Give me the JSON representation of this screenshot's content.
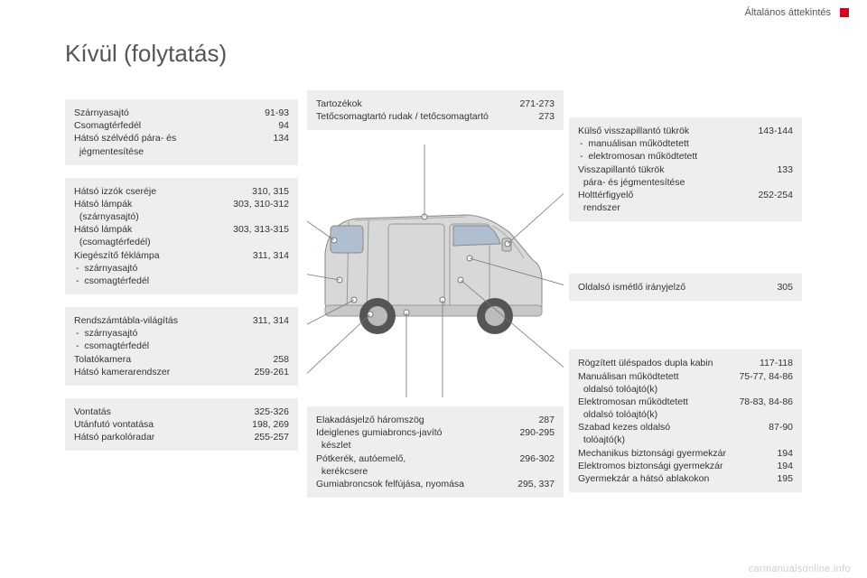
{
  "header": {
    "section": "Általános áttekintés"
  },
  "title": "Kívül (folytatás)",
  "left": [
    {
      "rows": [
        {
          "label": "Szárnyasajtó",
          "pages": "91-93"
        },
        {
          "label": "Csomagtérfedél",
          "pages": "94"
        },
        {
          "label": "Hátsó szélvédő pára- és\n  jégmentesítése",
          "pages": "134"
        }
      ]
    },
    {
      "rows": [
        {
          "label": "Hátsó izzók cseréje",
          "pages": "310, 315"
        },
        {
          "label": "Hátsó lámpák\n  (szárnyasajtó)",
          "pages": "303, 310-312"
        },
        {
          "label": "Hátsó lámpák\n  (csomagtérfedél)",
          "pages": "303, 313-315"
        },
        {
          "label": "Kiegészítő féklámpa",
          "pages": "311, 314"
        },
        {
          "sub": true,
          "label": "szárnyasajtó"
        },
        {
          "sub": true,
          "label": "csomagtérfedél"
        }
      ]
    },
    {
      "rows": [
        {
          "label": "Rendszámtábla-világítás",
          "pages": "311, 314"
        },
        {
          "sub": true,
          "label": "szárnyasajtó"
        },
        {
          "sub": true,
          "label": "csomagtérfedél"
        },
        {
          "label": "Tolatókamera",
          "pages": "258"
        },
        {
          "label": "Hátsó kamerarendszer",
          "pages": "259-261"
        }
      ]
    },
    {
      "rows": [
        {
          "label": "Vontatás",
          "pages": "325-326"
        },
        {
          "label": "Utánfutó vontatása",
          "pages": "198, 269"
        },
        {
          "label": "Hátsó parkolóradar",
          "pages": "255-257"
        }
      ]
    }
  ],
  "midTop": [
    {
      "rows": [
        {
          "label": "Tartozékok",
          "pages": "271-273"
        },
        {
          "label": "Tetőcsomagtartó rudak / tetőcsomagtartó",
          "pages": "273"
        }
      ]
    }
  ],
  "midBottom": [
    {
      "rows": [
        {
          "label": "Elakadásjelző háromszög",
          "pages": "287"
        },
        {
          "label": "Ideiglenes gumiabroncs-javító\n  készlet",
          "pages": "290-295"
        },
        {
          "label": "Pótkerék, autóemelő,\n  kerékcsere",
          "pages": "296-302"
        },
        {
          "label": "Gumiabroncsok felfújása, nyomása",
          "pages": "295, 337"
        }
      ]
    }
  ],
  "right": [
    {
      "rows": [
        {
          "label": "Külső visszapillantó tükrök",
          "pages": "143-144"
        },
        {
          "sub": true,
          "label": "manuálisan működtetett"
        },
        {
          "sub": true,
          "label": "elektromosan működtetett"
        },
        {
          "label": "Visszapillantó tükrök\n  pára- és jégmentesítése",
          "pages": "133"
        },
        {
          "label": "Holttérfigyelő\n  rendszer",
          "pages": "252-254"
        }
      ]
    },
    {
      "rows": [
        {
          "label": "Oldalsó ismétlő irányjelző",
          "pages": "305"
        }
      ]
    },
    {
      "rows": [
        {
          "label": "Rögzített üléspados dupla kabin",
          "pages": "117-118"
        },
        {
          "label": "Manuálisan működtetett\n  oldalsó tolóajtó(k)",
          "pages": "75-77, 84-86"
        },
        {
          "label": "Elektromosan működtetett\n  oldalsó tolóajtó(k)",
          "pages": "78-83, 84-86"
        },
        {
          "label": "Szabad kezes oldalsó\n  tolóajtó(k)",
          "pages": "87-90"
        },
        {
          "label": "Mechanikus biztonsági gyermekzár",
          "pages": "194"
        },
        {
          "label": "Elektromos biztonsági gyermekzár",
          "pages": "194"
        },
        {
          "label": "Gyermekzár a hátsó ablakokon",
          "pages": "195"
        }
      ]
    }
  ],
  "footer": "carmanualsonline.info",
  "colors": {
    "accent": "#d8011c",
    "box_bg": "#eeeeee",
    "text": "#333333",
    "footer": "#cfcfcf"
  }
}
